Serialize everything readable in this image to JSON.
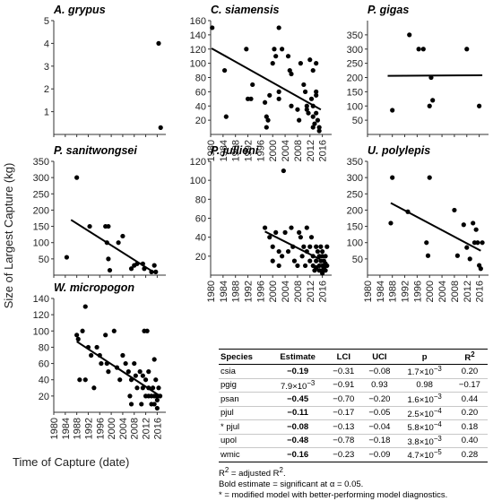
{
  "chart_data": {
    "type": "scatter",
    "ylabel": "Size of Largest Capture (kg)",
    "xlabel": "Time of Capture (date)",
    "x_ticks": [
      "1980",
      "1984",
      "1988",
      "1992",
      "1996",
      "2000",
      "2004",
      "2008",
      "2012",
      "2016"
    ],
    "xlim": [
      1980,
      2019
    ],
    "panels": [
      {
        "id": "agrypus",
        "title": "A. grypus",
        "ylim": [
          0,
          5
        ],
        "y_ticks": [
          "1",
          "2",
          "3",
          "4",
          "5"
        ],
        "y_tick_values": [
          1,
          2,
          3,
          4,
          5
        ],
        "show_x_ticks": false,
        "points": [
          [
            2016.5,
            4.0
          ],
          [
            2017.2,
            0.3
          ]
        ],
        "fit": null
      },
      {
        "id": "csiamensis",
        "title": "C. siamensis",
        "ylim": [
          0,
          160
        ],
        "y_ticks": [
          "20",
          "40",
          "60",
          "80",
          "100",
          "120",
          "140",
          "160"
        ],
        "y_tick_values": [
          20,
          40,
          60,
          80,
          100,
          120,
          140,
          160
        ],
        "show_x_ticks": true,
        "points": [
          [
            1980.5,
            150
          ],
          [
            1984.5,
            90
          ],
          [
            1985,
            25
          ],
          [
            1991.5,
            120
          ],
          [
            1992,
            50
          ],
          [
            1993,
            50
          ],
          [
            1993.5,
            70
          ],
          [
            1997.5,
            45
          ],
          [
            1998,
            25
          ],
          [
            1998.5,
            20
          ],
          [
            1998,
            10
          ],
          [
            1999,
            55
          ],
          [
            2000.5,
            120
          ],
          [
            2000,
            100
          ],
          [
            2001,
            110
          ],
          [
            2002,
            150
          ],
          [
            2002,
            50
          ],
          [
            2002,
            60
          ],
          [
            2003,
            120
          ],
          [
            2005,
            110
          ],
          [
            2005.5,
            90
          ],
          [
            2006,
            85
          ],
          [
            2006,
            40
          ],
          [
            2008,
            35
          ],
          [
            2008.5,
            20
          ],
          [
            2009,
            100
          ],
          [
            2010,
            70
          ],
          [
            2010.5,
            60
          ],
          [
            2011,
            40
          ],
          [
            2011,
            35
          ],
          [
            2011.5,
            30
          ],
          [
            2012,
            105
          ],
          [
            2012.5,
            50
          ],
          [
            2013,
            90
          ],
          [
            2013,
            40
          ],
          [
            2013,
            25
          ],
          [
            2013.5,
            15
          ],
          [
            2013,
            10
          ],
          [
            2014,
            100
          ],
          [
            2014,
            60
          ],
          [
            2014,
            55
          ],
          [
            2014,
            30
          ],
          [
            2014.5,
            20
          ],
          [
            2015,
            10
          ],
          [
            2015,
            5
          ]
        ],
        "fit": [
          [
            1980.3,
            121
          ],
          [
            2015.5,
            35
          ]
        ]
      },
      {
        "id": "pgigas",
        "title": "P. gigas",
        "ylim": [
          0,
          400
        ],
        "y_ticks": [
          "50",
          "100",
          "150",
          "200",
          "250",
          "300",
          "350"
        ],
        "y_tick_values": [
          50,
          100,
          150,
          200,
          250,
          300,
          350
        ],
        "show_x_ticks": false,
        "points": [
          [
            1988,
            85
          ],
          [
            1993.5,
            350
          ],
          [
            1996.5,
            300
          ],
          [
            1998,
            300
          ],
          [
            2000,
            100
          ],
          [
            2000.5,
            200
          ],
          [
            2001,
            120
          ],
          [
            2012,
            300
          ],
          [
            2016,
            100
          ]
        ],
        "fit": [
          [
            1986.5,
            206
          ],
          [
            2017,
            208
          ]
        ]
      },
      {
        "id": "psanitwongsei",
        "title": "P. sanitwongsei",
        "ylim": [
          0,
          350
        ],
        "y_ticks": [
          "50",
          "100",
          "150",
          "200",
          "250",
          "300",
          "350"
        ],
        "y_tick_values": [
          50,
          100,
          150,
          200,
          250,
          300,
          350
        ],
        "show_x_ticks": false,
        "points": [
          [
            1984.5,
            55
          ],
          [
            1988,
            300
          ],
          [
            1992.5,
            150
          ],
          [
            1998,
            150
          ],
          [
            1998.5,
            100
          ],
          [
            1999,
            150
          ],
          [
            1999,
            50
          ],
          [
            1999.5,
            15
          ],
          [
            2002.5,
            100
          ],
          [
            2004,
            120
          ],
          [
            2007,
            20
          ],
          [
            2008,
            30
          ],
          [
            2009,
            35
          ],
          [
            2011,
            35
          ],
          [
            2011.5,
            20
          ],
          [
            2014,
            10
          ],
          [
            2015,
            30
          ],
          [
            2015.5,
            10
          ]
        ],
        "fit": [
          [
            1986,
            170
          ],
          [
            2015.5,
            5
          ]
        ]
      },
      {
        "id": "pjullieni",
        "title": "P. jullieni",
        "ylim": [
          0,
          120
        ],
        "y_ticks": [
          "20",
          "40",
          "60",
          "80",
          "100",
          "120"
        ],
        "y_tick_values": [
          20,
          40,
          60,
          80,
          100,
          120
        ],
        "show_x_ticks": true,
        "points": [
          [
            1997.5,
            50
          ],
          [
            1999,
            40
          ],
          [
            2000,
            30
          ],
          [
            2000,
            15
          ],
          [
            2001,
            45
          ],
          [
            2002,
            25
          ],
          [
            2002,
            10
          ],
          [
            2003,
            20
          ],
          [
            2003.5,
            110
          ],
          [
            2004,
            45
          ],
          [
            2005,
            25
          ],
          [
            2006,
            50
          ],
          [
            2006.5,
            30
          ],
          [
            2007,
            15
          ],
          [
            2008,
            10
          ],
          [
            2008.5,
            45
          ],
          [
            2009,
            40
          ],
          [
            2009.5,
            20
          ],
          [
            2010,
            30
          ],
          [
            2010.5,
            10
          ],
          [
            2011,
            50
          ],
          [
            2011,
            25
          ],
          [
            2012,
            30
          ],
          [
            2012,
            15
          ],
          [
            2012.5,
            40
          ],
          [
            2013,
            20
          ],
          [
            2013,
            10
          ],
          [
            2013.5,
            5
          ],
          [
            2014,
            30
          ],
          [
            2014,
            15
          ],
          [
            2014,
            8
          ],
          [
            2014.5,
            25
          ],
          [
            2015,
            20
          ],
          [
            2015,
            10
          ],
          [
            2015,
            5
          ],
          [
            2015.5,
            30
          ],
          [
            2015.5,
            15
          ],
          [
            2016,
            25
          ],
          [
            2016,
            20
          ],
          [
            2016,
            10
          ],
          [
            2016,
            5
          ],
          [
            2016,
            2
          ],
          [
            2016.5,
            15
          ],
          [
            2016.5,
            8
          ],
          [
            2017,
            20
          ],
          [
            2017,
            12
          ],
          [
            2017,
            5
          ],
          [
            2017.5,
            30
          ],
          [
            2017.5,
            10
          ]
        ],
        "fit": [
          [
            1997.5,
            46
          ],
          [
            2017.5,
            13
          ]
        ]
      },
      {
        "id": "upolylepis",
        "title": "U. polylepis",
        "ylim": [
          0,
          350
        ],
        "y_ticks": [
          "50",
          "100",
          "150",
          "200",
          "250",
          "300",
          "350"
        ],
        "y_tick_values": [
          50,
          100,
          150,
          200,
          250,
          300,
          350
        ],
        "show_x_ticks": true,
        "points": [
          [
            1987.5,
            160
          ],
          [
            1988,
            300
          ],
          [
            1993,
            195
          ],
          [
            1999,
            100
          ],
          [
            1999.5,
            60
          ],
          [
            2000,
            300
          ],
          [
            2008,
            200
          ],
          [
            2009,
            60
          ],
          [
            2011,
            155
          ],
          [
            2012,
            85
          ],
          [
            2013,
            50
          ],
          [
            2014,
            160
          ],
          [
            2014.5,
            100
          ],
          [
            2015,
            140
          ],
          [
            2015.5,
            100
          ],
          [
            2016,
            30
          ],
          [
            2016.5,
            20
          ],
          [
            2017,
            100
          ]
        ],
        "fit": [
          [
            1987.5,
            222
          ],
          [
            2016.5,
            75
          ]
        ]
      },
      {
        "id": "wmicropogon",
        "title": "W. micropogon",
        "ylim": [
          0,
          140
        ],
        "y_ticks": [
          "20",
          "40",
          "60",
          "80",
          "100",
          "120",
          "140"
        ],
        "y_tick_values": [
          20,
          40,
          60,
          80,
          100,
          120,
          140
        ],
        "show_x_ticks": true,
        "points": [
          [
            1988,
            95
          ],
          [
            1988.5,
            90
          ],
          [
            1989,
            40
          ],
          [
            1990,
            100
          ],
          [
            1991,
            130
          ],
          [
            1991,
            40
          ],
          [
            1992,
            80
          ],
          [
            1993,
            70
          ],
          [
            1994,
            30
          ],
          [
            1995,
            80
          ],
          [
            1996,
            70
          ],
          [
            1996.5,
            60
          ],
          [
            1998,
            95
          ],
          [
            1998.5,
            60
          ],
          [
            1999,
            50
          ],
          [
            2001,
            100
          ],
          [
            2002,
            55
          ],
          [
            2003,
            40
          ],
          [
            2004,
            70
          ],
          [
            2005,
            60
          ],
          [
            2006,
            50
          ],
          [
            2006.5,
            20
          ],
          [
            2007,
            40
          ],
          [
            2007,
            10
          ],
          [
            2008,
            60
          ],
          [
            2008.5,
            45
          ],
          [
            2009,
            30
          ],
          [
            2010,
            50
          ],
          [
            2010.5,
            10
          ],
          [
            2011,
            45
          ],
          [
            2011,
            30
          ],
          [
            2011.5,
            100
          ],
          [
            2012,
            40
          ],
          [
            2012,
            20
          ],
          [
            2012.5,
            100
          ],
          [
            2013,
            50
          ],
          [
            2013,
            30
          ],
          [
            2013,
            20
          ],
          [
            2014,
            20
          ],
          [
            2014,
            10
          ],
          [
            2014.5,
            30
          ],
          [
            2015,
            65
          ],
          [
            2015,
            20
          ],
          [
            2015,
            10
          ],
          [
            2015.5,
            40
          ],
          [
            2016,
            20
          ],
          [
            2016,
            15
          ],
          [
            2016,
            5
          ],
          [
            2016.5,
            30
          ],
          [
            2017,
            20
          ]
        ],
        "fit": [
          [
            1988,
            87
          ],
          [
            2017,
            20
          ]
        ]
      }
    ]
  },
  "stats_table": {
    "headers": {
      "species": "Species",
      "estimate": "Estimate",
      "lci": "LCI",
      "uci": "UCI",
      "p": "p",
      "r2_base": "R",
      "r2_sup": "2"
    },
    "rows": [
      {
        "species": "csia",
        "estimate": "−0.19",
        "bold": true,
        "lci": "−0.31",
        "uci": "−0.08",
        "p_base": "1.7×10",
        "p_exp": "−3",
        "r2": "0.20",
        "extra": ""
      },
      {
        "species": "pgig",
        "estimate_base": "7.9×10",
        "estimate_exp": "−3",
        "bold": false,
        "lci": "−0.91",
        "uci": "0.93",
        "p_base": "0.98",
        "p_exp": "",
        "r2": "−0.17",
        "extra": ""
      },
      {
        "species": "psan",
        "estimate": "−0.45",
        "bold": true,
        "lci": "−0.70",
        "uci": "−0.20",
        "p_base": "1.6×10",
        "p_exp": "−3",
        "r2": "0.44",
        "extra": ""
      },
      {
        "species": "pjul",
        "estimate": "−0.11",
        "bold": true,
        "lci": "−0.17",
        "uci": "−0.05",
        "p_base": "2.5×10",
        "p_exp": "−4",
        "r2": "0.20",
        "extra": ""
      },
      {
        "species": "pjul",
        "estimate": "−0.08",
        "bold": true,
        "lci": "−0.13",
        "uci": "−0.04",
        "p_base": "5.8×10",
        "p_exp": "−4",
        "r2": "0.18",
        "extra": "* "
      },
      {
        "species": "upol",
        "estimate": "−0.48",
        "bold": true,
        "lci": "−0.78",
        "uci": "−0.18",
        "p_base": "3.8×10",
        "p_exp": "−3",
        "r2": "0.40",
        "extra": ""
      },
      {
        "species": "wmic",
        "estimate": "−0.16",
        "bold": true,
        "lci": "−0.23",
        "uci": "−0.09",
        "p_base": "4.7×10",
        "p_exp": "−5",
        "r2": "0.28",
        "extra": ""
      }
    ],
    "note1_base": "R",
    "note1_sup": "2",
    "note1_mid": " = adjusted R",
    "note1_sup2": "2",
    "note1_end": ".",
    "note2": "Bold estimate = significant at α = 0.05.",
    "note3": "* = modified model with better-performing model diagnostics."
  }
}
